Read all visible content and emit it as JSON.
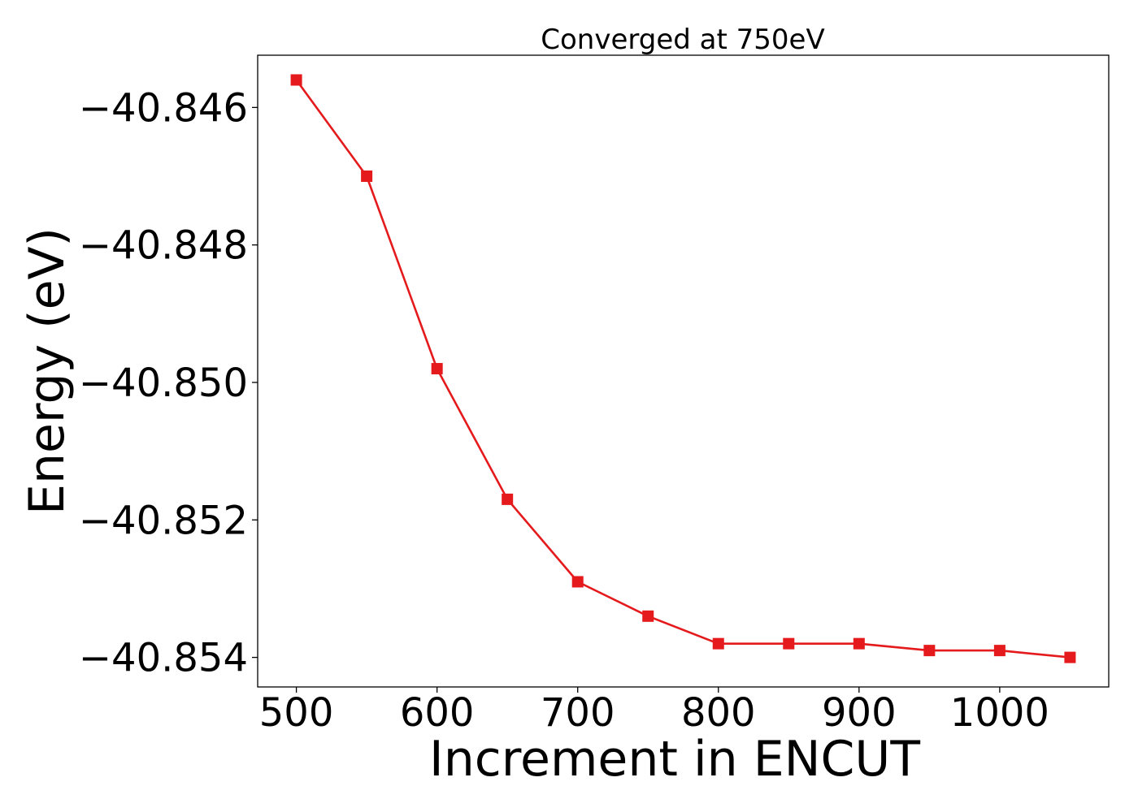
{
  "chart_data": {
    "type": "line",
    "title": "Converged at 750eV",
    "xlabel": "Increment in ENCUT",
    "ylabel": "Energy (eV)",
    "x": [
      500,
      550,
      600,
      650,
      700,
      750,
      800,
      850,
      900,
      950,
      1000,
      1050
    ],
    "series": [
      {
        "values": [
          -40.8456,
          -40.847,
          -40.8498,
          -40.8517,
          -40.8529,
          -40.8534,
          -40.8538,
          -40.8538,
          -40.8538,
          -40.8539,
          -40.8539,
          -40.854
        ],
        "color": "#e41a1c",
        "marker": "square"
      }
    ],
    "xticks": [
      500,
      600,
      700,
      800,
      900,
      1000
    ],
    "xtick_labels": [
      "500",
      "600",
      "700",
      "800",
      "900",
      "1000"
    ],
    "yticks": [
      -40.846,
      -40.848,
      -40.85,
      -40.852,
      -40.854
    ],
    "ytick_labels": [
      "−40.846",
      "−40.848",
      "−40.850",
      "−40.852",
      "−40.854"
    ],
    "xlim": [
      472.5,
      1077.5
    ],
    "ylim": [
      -40.85443,
      -40.84524
    ],
    "grid": false,
    "legend": "none"
  }
}
